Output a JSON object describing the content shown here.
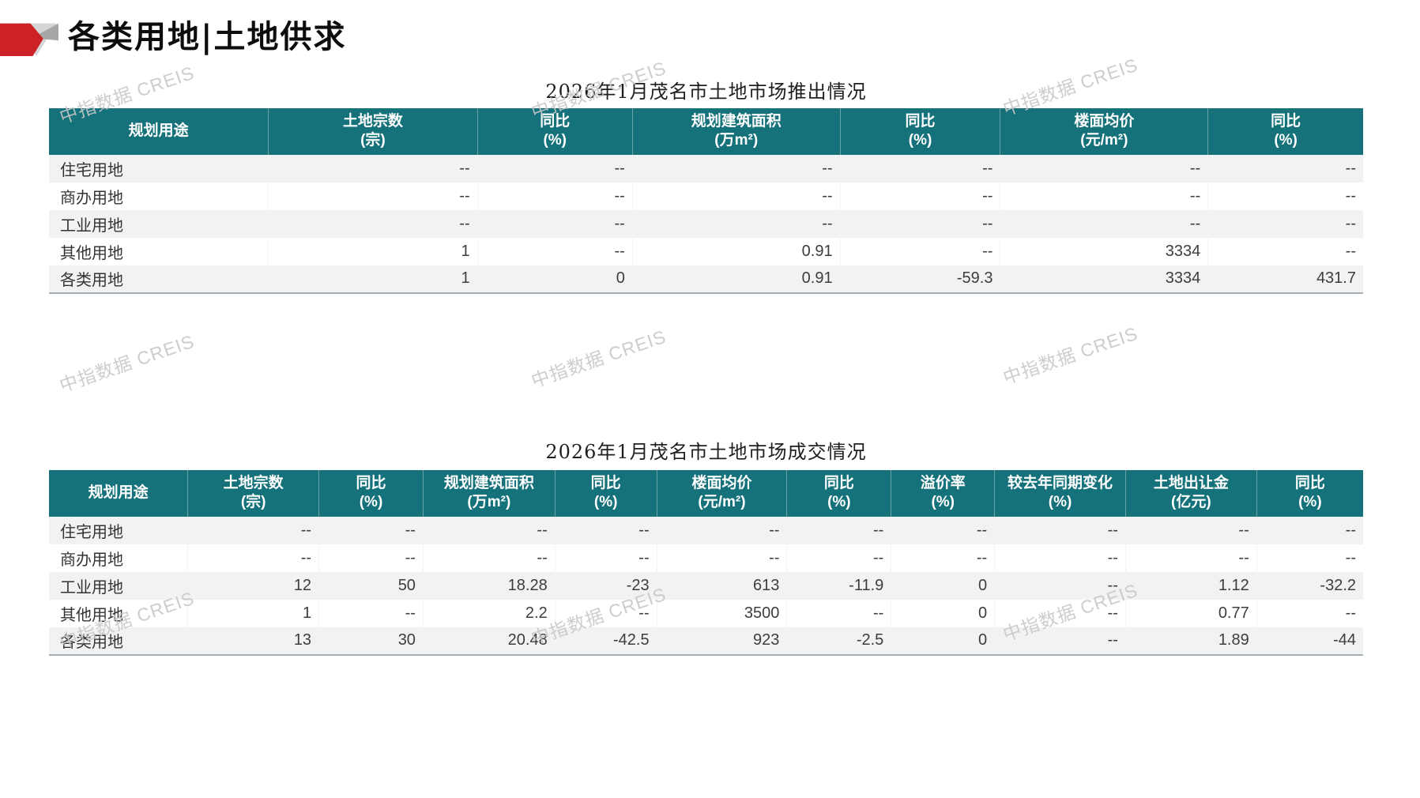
{
  "page": {
    "title": "各类用地|土地供求",
    "watermark": "中指数据 CREIS"
  },
  "colors": {
    "header_teal": "#15717a",
    "brand_red": "#cb2127",
    "stripe_gray": "#f1f2f4",
    "watermark_gray": "#c8c8c8"
  },
  "tables": [
    {
      "title": "2026年1月茂名市土地市场推出情况",
      "columns": [
        {
          "line1": "规划用途",
          "line2": ""
        },
        {
          "line1": "土地宗数",
          "line2": "(宗)"
        },
        {
          "line1": "同比",
          "line2": "(%)"
        },
        {
          "line1": "规划建筑面积",
          "line2": "(万m²)"
        },
        {
          "line1": "同比",
          "line2": "(%)"
        },
        {
          "line1": "楼面均价",
          "line2": "(元/m²)"
        },
        {
          "line1": "同比",
          "line2": "(%)"
        }
      ],
      "rows": [
        [
          "住宅用地",
          "--",
          "--",
          "--",
          "--",
          "--",
          "--"
        ],
        [
          "商办用地",
          "--",
          "--",
          "--",
          "--",
          "--",
          "--"
        ],
        [
          "工业用地",
          "--",
          "--",
          "--",
          "--",
          "--",
          "--"
        ],
        [
          "其他用地",
          "1",
          "--",
          "0.91",
          "--",
          "3334",
          "--"
        ],
        [
          "各类用地",
          "1",
          "0",
          "0.91",
          "-59.3",
          "3334",
          "431.7"
        ]
      ]
    },
    {
      "title": "2026年1月茂名市土地市场成交情况",
      "columns": [
        {
          "line1": "规划用途",
          "line2": ""
        },
        {
          "line1": "土地宗数",
          "line2": "(宗)"
        },
        {
          "line1": "同比",
          "line2": "(%)"
        },
        {
          "line1": "规划建筑面积",
          "line2": "(万m²)"
        },
        {
          "line1": "同比",
          "line2": "(%)"
        },
        {
          "line1": "楼面均价",
          "line2": "(元/m²)"
        },
        {
          "line1": "同比",
          "line2": "(%)"
        },
        {
          "line1": "溢价率",
          "line2": "(%)"
        },
        {
          "line1": "较去年同期变化",
          "line2": "(%)"
        },
        {
          "line1": "土地出让金",
          "line2": "(亿元)"
        },
        {
          "line1": "同比",
          "line2": "(%)"
        }
      ],
      "rows": [
        [
          "住宅用地",
          "--",
          "--",
          "--",
          "--",
          "--",
          "--",
          "--",
          "--",
          "--",
          "--"
        ],
        [
          "商办用地",
          "--",
          "--",
          "--",
          "--",
          "--",
          "--",
          "--",
          "--",
          "--",
          "--"
        ],
        [
          "工业用地",
          "12",
          "50",
          "18.28",
          "-23",
          "613",
          "-11.9",
          "0",
          "--",
          "1.12",
          "-32.2"
        ],
        [
          "其他用地",
          "1",
          "--",
          "2.2",
          "--",
          "3500",
          "--",
          "0",
          "--",
          "0.77",
          "--"
        ],
        [
          "各类用地",
          "13",
          "30",
          "20.48",
          "-42.5",
          "923",
          "-2.5",
          "0",
          "--",
          "1.89",
          "-44"
        ]
      ]
    }
  ]
}
